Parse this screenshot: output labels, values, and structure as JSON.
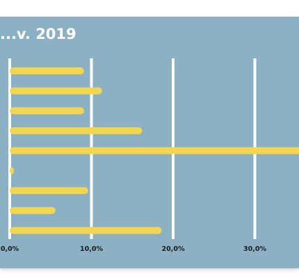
{
  "title": "...v. 2019",
  "chart_data": {
    "type": "bar",
    "orientation": "horizontal",
    "title": "...v. 2019",
    "categories": [
      "",
      "",
      "",
      "",
      "",
      "",
      "",
      "",
      ""
    ],
    "values": [
      9.1,
      11.3,
      9.1,
      16.2,
      36.0,
      0.5,
      9.6,
      5.6,
      18.6
    ],
    "xlim": [
      0,
      36.0
    ],
    "xticks": [
      0,
      10,
      20,
      30
    ],
    "xtick_labels": [
      "0,0%",
      "10,0%",
      "20,0%",
      "30,0%"
    ],
    "grid": "vertical",
    "xlabel": "",
    "ylabel": ""
  },
  "colors": {
    "background": "#8cb1c4",
    "bar": "#f2d64f",
    "grid": "#ffffff",
    "text": "#1b1b1b",
    "title": "#ffffff"
  }
}
